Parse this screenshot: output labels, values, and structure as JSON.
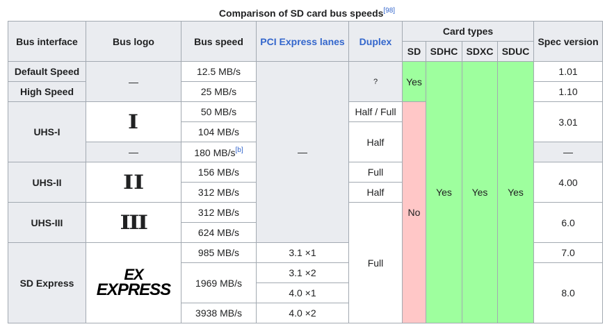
{
  "caption": {
    "title": "Comparison of SD card bus speeds",
    "ref": "[98]"
  },
  "headers": {
    "bus_interface": "Bus interface",
    "bus_logo": "Bus logo",
    "bus_speed": "Bus speed",
    "pcie_lanes": "PCI Express lanes",
    "duplex": "Duplex",
    "card_types": "Card types",
    "spec_version": "Spec version",
    "sd": "SD",
    "sdhc": "SDHC",
    "sdxc": "SDXC",
    "sduc": "SDUC"
  },
  "interfaces": {
    "default_speed": "Default Speed",
    "high_speed": "High Speed",
    "uhs1": "UHS-I",
    "uhs2": "UHS-II",
    "uhs3": "UHS-III",
    "sd_express": "SD Express"
  },
  "logos": {
    "dash_default": "—",
    "uhs1": "I",
    "dash_180": "—",
    "uhs2": "II",
    "uhs3": "III",
    "express_top": "EX",
    "express_bottom": "EXPRESS"
  },
  "speeds": {
    "s1": "12.5 MB/s",
    "s2": "25 MB/s",
    "s3": "50 MB/s",
    "s4": "104 MB/s",
    "s5": "180 MB/s",
    "s5_ref": "[b]",
    "s6": "156 MB/s",
    "s7": "312 MB/s",
    "s8": "312 MB/s",
    "s9": "624 MB/s",
    "s10": "985 MB/s",
    "s11": "1969 MB/s",
    "s12": "3938 MB/s"
  },
  "pcie": {
    "none": "—",
    "p1": "3.1 ×1",
    "p2": "3.1 ×2",
    "p3": "4.0 ×1",
    "p4": "4.0 ×2"
  },
  "duplex": {
    "unknown": "?",
    "half_full": "Half / Full",
    "half1": "Half",
    "full1": "Full",
    "half2": "Half",
    "full2": "Full"
  },
  "card_support": {
    "sd_yes": "Yes",
    "sd_no": "No",
    "sdhc": "Yes",
    "sdxc": "Yes",
    "sduc": "Yes"
  },
  "spec_versions": {
    "v1": "1.01",
    "v2": "1.10",
    "v3": "3.01",
    "v_dash": "—",
    "v4": "4.00",
    "v5": "6.0",
    "v6": "7.0",
    "v7": "8.0"
  },
  "colors": {
    "yes": "#9eff9e",
    "no": "#ffc7c7",
    "header": "#eaecf0",
    "border": "#a2a9b1",
    "link": "#3366cc"
  }
}
